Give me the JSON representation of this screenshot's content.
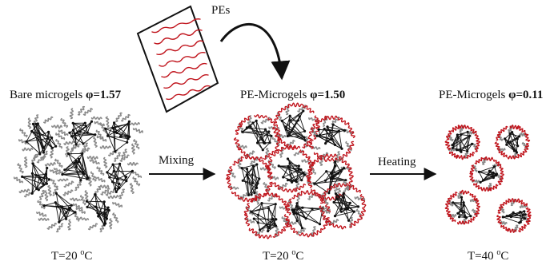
{
  "diagram": {
    "pes_label": "PEs",
    "panels": [
      {
        "title": "Bare microgels",
        "phi_symbol": "φ",
        "phi_value": "=1.57",
        "temp_prefix": "T=20 ",
        "temp_deg": "o",
        "temp_unit": "C"
      },
      {
        "title": "PE-Microgels",
        "phi_symbol": "φ",
        "phi_value": "=1.50",
        "temp_prefix": "T=20 ",
        "temp_deg": "o",
        "temp_unit": "C"
      },
      {
        "title": "PE-Microgels",
        "phi_symbol": "φ",
        "phi_value": "=0.11",
        "temp_prefix": "T=40 ",
        "temp_deg": "o",
        "temp_unit": "C"
      }
    ],
    "steps": [
      {
        "label": "Mixing"
      },
      {
        "label": "Heating"
      }
    ],
    "colors": {
      "network": "#111111",
      "corona": "#8a8a8a",
      "polyelectrolyte": "#c0141c",
      "arrow": "#111111"
    }
  }
}
